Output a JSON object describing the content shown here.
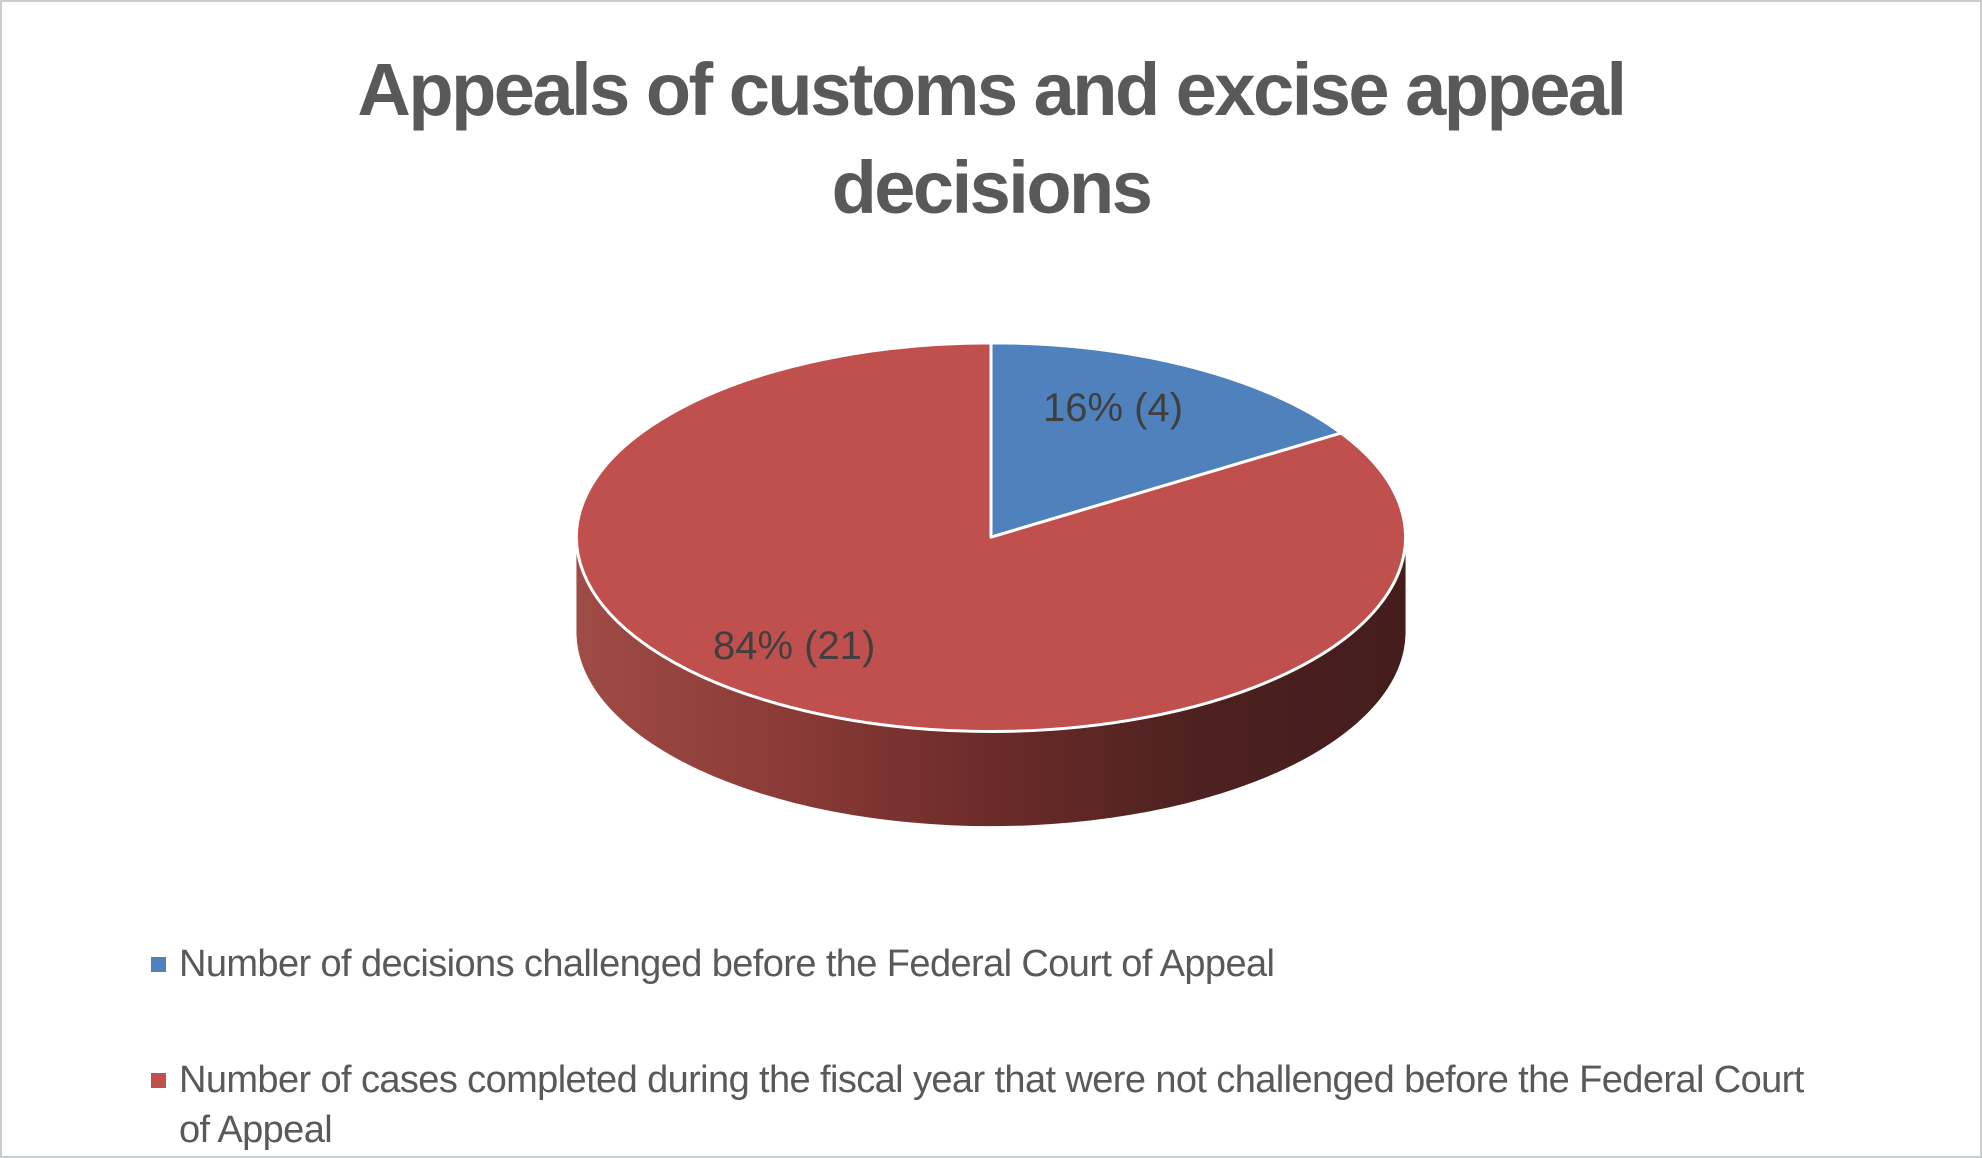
{
  "frame": {
    "background": "#ffffff",
    "border_color": "#c9cdd0"
  },
  "title": {
    "text": "Appeals of customs and excise appeal decisions",
    "lines": [
      "Appeals of customs and excise appeal",
      "decisions"
    ],
    "color": "#595959"
  },
  "chart_data": {
    "type": "pie",
    "projection": "3d",
    "start_angle_deg": 0,
    "direction": "clockwise",
    "title": "Appeals of customs and excise appeal decisions",
    "legend_position": "bottom",
    "grid": false,
    "slices": [
      {
        "name": "Number of decisions challenged before the Federal Court of Appeal",
        "percent": 16,
        "value": 4,
        "data_label": "16% (4)",
        "color": "#4F81BD"
      },
      {
        "name": "Number of cases completed during the fiscal year that were not challenged before the Federal Court of Appeal",
        "percent": 84,
        "value": 21,
        "data_label": "84% (21)",
        "color": "#C0504D"
      }
    ]
  },
  "legend": {
    "text_color": "#595959",
    "items": [
      {
        "marker_color": "#4F81BD",
        "lines": [
          "Number of decisions challenged before the Federal Court of Appeal"
        ]
      },
      {
        "marker_color": "#C0504D",
        "lines": [
          "Number of cases completed during the fiscal year that were not challenged before the Federal Court",
          "of Appeal"
        ]
      }
    ]
  }
}
